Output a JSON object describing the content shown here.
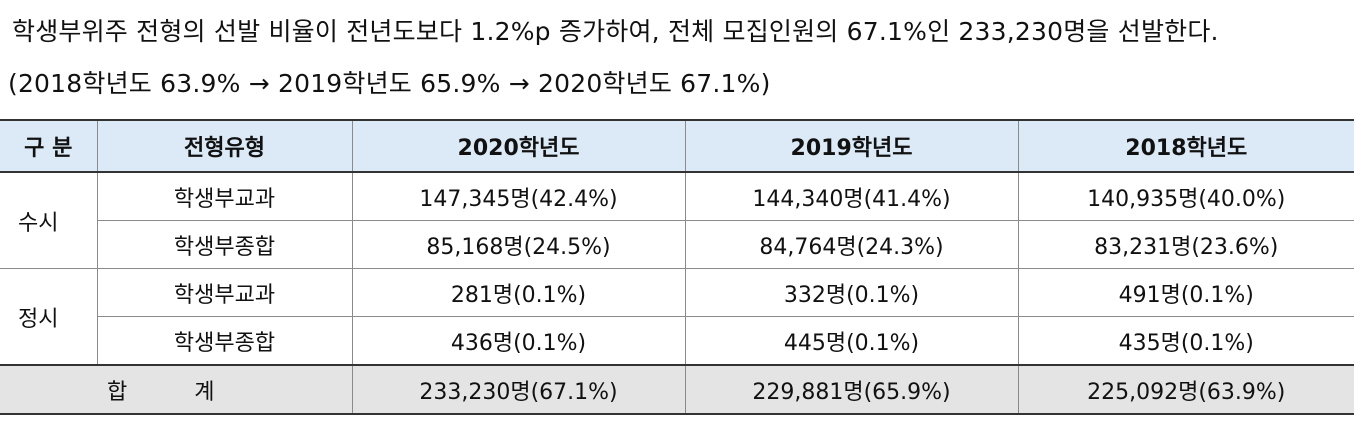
{
  "summary": {
    "line1": "학생부위주 전형의 선발 비율이 전년도보다 1.2%p 증가하여, 전체 모집인원의 67.1%인 233,230명을 선발한다.",
    "line2": "(2018학년도 63.9% → 2019학년도 65.9% → 2020학년도 67.1%)"
  },
  "table": {
    "headers": {
      "category": "구 분",
      "type": "전형유형",
      "y2020": "2020학년도",
      "y2019": "2019학년도",
      "y2018": "2018학년도"
    },
    "groups": [
      {
        "label": "수시",
        "rows": [
          {
            "type": "학생부교과",
            "y2020": "147,345명(42.4%)",
            "y2019": "144,340명(41.4%)",
            "y2018": "140,935명(40.0%)"
          },
          {
            "type": "학생부종합",
            "y2020": "85,168명(24.5%)",
            "y2019": "84,764명(24.3%)",
            "y2018": "83,231명(23.6%)"
          }
        ]
      },
      {
        "label": "정시",
        "rows": [
          {
            "type": "학생부교과",
            "y2020": "281명(0.1%)",
            "y2019": "332명(0.1%)",
            "y2018": "491명(0.1%)"
          },
          {
            "type": "학생부종합",
            "y2020": "436명(0.1%)",
            "y2019": "445명(0.1%)",
            "y2018": "435명(0.1%)"
          }
        ]
      }
    ],
    "total": {
      "label": "합 계",
      "y2020": "233,230명(67.1%)",
      "y2019": "229,881명(65.9%)",
      "y2018": "225,092명(63.9%)"
    },
    "colors": {
      "header_bg": "#dbeaf6",
      "total_bg": "#e4e4e4"
    }
  }
}
